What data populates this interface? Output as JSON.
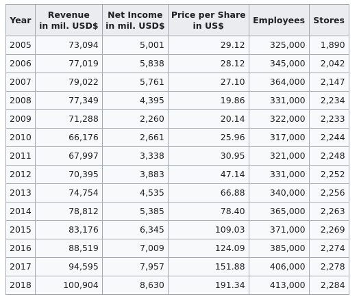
{
  "table": {
    "headers": [
      {
        "key": "year",
        "line1": "Year",
        "line2": ""
      },
      {
        "key": "revenue",
        "line1": "Revenue",
        "line2": "in mil. USD$"
      },
      {
        "key": "net_income",
        "line1": "Net Income",
        "line2": "in mil. USD$"
      },
      {
        "key": "price",
        "line1": "Price per Share",
        "line2": "in US$"
      },
      {
        "key": "employees",
        "line1": "Employees",
        "line2": ""
      },
      {
        "key": "stores",
        "line1": "Stores",
        "line2": ""
      }
    ],
    "rows": [
      [
        "2005",
        "73,094",
        "5,001",
        "29.12",
        "325,000",
        "1,890"
      ],
      [
        "2006",
        "77,019",
        "5,838",
        "28.12",
        "345,000",
        "2,042"
      ],
      [
        "2007",
        "79,022",
        "5,761",
        "27.10",
        "364,000",
        "2,147"
      ],
      [
        "2008",
        "77,349",
        "4,395",
        "19.86",
        "331,000",
        "2,234"
      ],
      [
        "2009",
        "71,288",
        "2,260",
        "20.14",
        "322,000",
        "2,233"
      ],
      [
        "2010",
        "66,176",
        "2,661",
        "25.96",
        "317,000",
        "2,244"
      ],
      [
        "2011",
        "67,997",
        "3,338",
        "30.95",
        "321,000",
        "2,248"
      ],
      [
        "2012",
        "70,395",
        "3,883",
        "47.14",
        "331,000",
        "2,252"
      ],
      [
        "2013",
        "74,754",
        "4,535",
        "66.88",
        "340,000",
        "2,256"
      ],
      [
        "2014",
        "78,812",
        "5,385",
        "78.40",
        "365,000",
        "2,263"
      ],
      [
        "2015",
        "83,176",
        "6,345",
        "109.03",
        "371,000",
        "2,269"
      ],
      [
        "2016",
        "88,519",
        "7,009",
        "124.09",
        "385,000",
        "2,274"
      ],
      [
        "2017",
        "94,595",
        "7,957",
        "151.88",
        "406,000",
        "2,278"
      ],
      [
        "2018",
        "100,904",
        "8,630",
        "191.34",
        "413,000",
        "2,284"
      ]
    ]
  }
}
